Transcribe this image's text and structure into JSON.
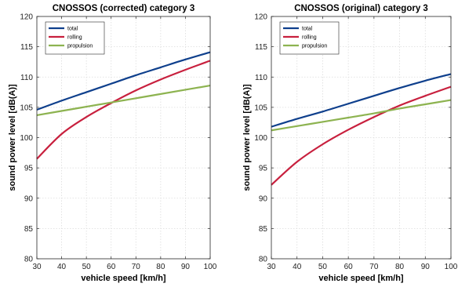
{
  "chart_data": [
    {
      "type": "line",
      "title": "CNOSSOS (corrected) category 3",
      "xlabel": "vehicle speed [km/h]",
      "ylabel": "sound power level [dB(A)]",
      "xlim": [
        30,
        100
      ],
      "ylim": [
        80,
        120
      ],
      "xticks": [
        30,
        40,
        50,
        60,
        70,
        80,
        90,
        100
      ],
      "yticks": [
        80,
        85,
        90,
        95,
        100,
        105,
        110,
        115,
        120
      ],
      "grid": true,
      "legend_position": "top-left",
      "x": [
        30,
        40,
        50,
        60,
        70,
        80,
        90,
        100
      ],
      "series": [
        {
          "name": "total",
          "color": "#0e3f8c",
          "values": [
            104.6,
            106.1,
            107.5,
            108.9,
            110.3,
            111.6,
            112.9,
            114.1
          ]
        },
        {
          "name": "rolling",
          "color": "#c8203e",
          "values": [
            96.5,
            100.6,
            103.4,
            105.7,
            107.8,
            109.6,
            111.2,
            112.7
          ]
        },
        {
          "name": "propulsion",
          "color": "#8db350",
          "values": [
            103.7,
            104.4,
            105.1,
            105.8,
            106.5,
            107.2,
            107.9,
            108.6
          ]
        }
      ]
    },
    {
      "type": "line",
      "title": "CNOSSOS (original) category 3",
      "xlabel": "vehicle speed [km/h]",
      "ylabel": "sound power level [dB(A)]",
      "xlim": [
        30,
        100
      ],
      "ylim": [
        80,
        120
      ],
      "xticks": [
        30,
        40,
        50,
        60,
        70,
        80,
        90,
        100
      ],
      "yticks": [
        80,
        85,
        90,
        95,
        100,
        105,
        110,
        115,
        120
      ],
      "grid": true,
      "legend_position": "top-left",
      "x": [
        30,
        40,
        50,
        60,
        70,
        80,
        90,
        100
      ],
      "series": [
        {
          "name": "total",
          "color": "#0e3f8c",
          "values": [
            101.8,
            103.1,
            104.3,
            105.6,
            106.9,
            108.2,
            109.4,
            110.5
          ]
        },
        {
          "name": "rolling",
          "color": "#c8203e",
          "values": [
            92.2,
            96.0,
            98.9,
            101.3,
            103.4,
            105.3,
            106.9,
            108.4
          ]
        },
        {
          "name": "propulsion",
          "color": "#8db350",
          "values": [
            101.2,
            101.9,
            102.6,
            103.3,
            104.0,
            104.8,
            105.5,
            106.2
          ]
        }
      ]
    }
  ]
}
